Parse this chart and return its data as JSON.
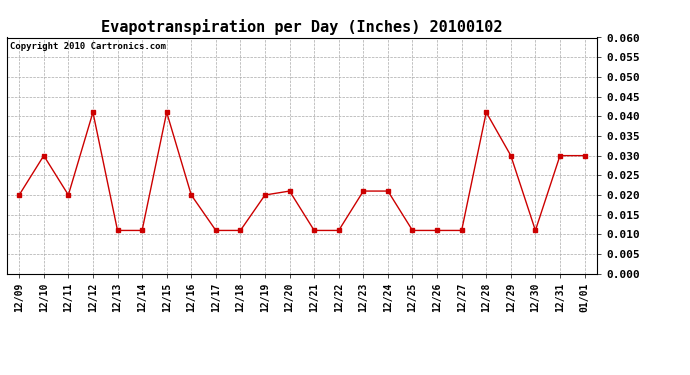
{
  "title": "Evapotranspiration per Day (Inches) 20100102",
  "copyright": "Copyright 2010 Cartronics.com",
  "x_labels": [
    "12/09",
    "12/10",
    "12/11",
    "12/12",
    "12/13",
    "12/14",
    "12/15",
    "12/16",
    "12/17",
    "12/18",
    "12/19",
    "12/20",
    "12/21",
    "12/22",
    "12/23",
    "12/24",
    "12/25",
    "12/26",
    "12/27",
    "12/28",
    "12/29",
    "12/30",
    "12/31",
    "01/01"
  ],
  "y_values": [
    0.02,
    0.03,
    0.02,
    0.041,
    0.011,
    0.011,
    0.041,
    0.02,
    0.011,
    0.011,
    0.02,
    0.021,
    0.011,
    0.011,
    0.021,
    0.021,
    0.011,
    0.011,
    0.011,
    0.041,
    0.03,
    0.011,
    0.03,
    0.03
  ],
  "line_color": "#cc0000",
  "marker": "s",
  "marker_size": 3,
  "ylim": [
    0.0,
    0.06
  ],
  "ytick_step": 0.005,
  "background_color": "#ffffff",
  "grid_color": "#aaaaaa",
  "title_fontsize": 11,
  "copyright_fontsize": 6.5,
  "tick_fontsize": 7,
  "ytick_fontsize": 8
}
